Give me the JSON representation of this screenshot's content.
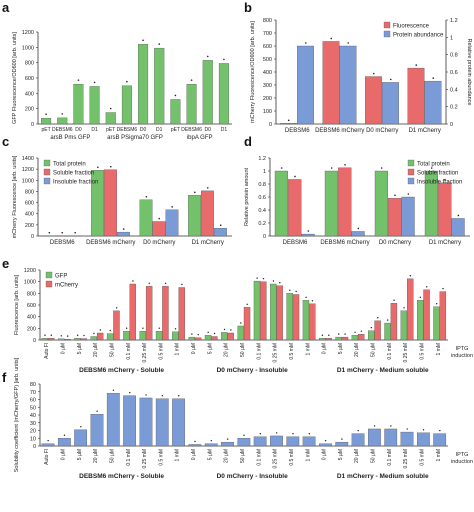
{
  "colors": {
    "green": "#74c16c",
    "red": "#e86a6a",
    "blue": "#7b9bd6",
    "axis": "#333333"
  },
  "chart_data": [
    {
      "panel": "a",
      "type": "bar",
      "ylabel": "GFP Fluorescence/OD600 [arb. units]",
      "ylim": [
        0,
        1200
      ],
      "yticks": [
        0,
        200,
        400,
        600,
        800,
        1000,
        1200
      ],
      "categories": [
        "pET",
        "DEBSM6",
        "D0",
        "D1",
        "pET",
        "DEBSM6",
        "D0",
        "D1",
        "pET",
        "DEBSM6",
        "D0",
        "D1"
      ],
      "values": [
        75,
        80,
        520,
        490,
        150,
        500,
        1040,
        990,
        320,
        520,
        830,
        790
      ],
      "group_labels": [
        "arsB Pms GFP",
        "arsB PSigma70 GFP",
        "ibpA GFP"
      ],
      "series": [
        {
          "name": "",
          "color": "green"
        }
      ]
    },
    {
      "panel": "b",
      "type": "bar",
      "ylabel": "mCherry Fluorescence/OD600 [arb. units]",
      "ylabel_right": "Relative protein abundance",
      "ylim": [
        0,
        800
      ],
      "yticks": [
        0,
        100,
        200,
        300,
        400,
        500,
        600,
        700,
        800
      ],
      "ylim_right": [
        0,
        1.2
      ],
      "yticks_right": [
        0,
        0.2,
        0.4,
        0.6,
        0.8,
        1,
        1.2
      ],
      "categories": [
        "DEBSM6",
        "DEBSM6 mCherry",
        "D0 mCherry",
        "D1 mCherry"
      ],
      "legend": "top-right",
      "series": [
        {
          "name": "Fluorescence",
          "color": "red",
          "values": [
            5,
            635,
            365,
            430
          ]
        },
        {
          "name": "Protein abundance",
          "color": "blue",
          "values": [
            600,
            600,
            320,
            330
          ]
        }
      ]
    },
    {
      "panel": "c",
      "type": "bar",
      "ylabel": "mCherry Fluorescence [arb. units]",
      "ylim": [
        0,
        1400
      ],
      "yticks": [
        0,
        200,
        400,
        600,
        800,
        1000,
        1200,
        1400
      ],
      "categories": [
        "DEBSM6",
        "DEBSM6 mCherry",
        "D0 mCherry",
        "D1 mCherry"
      ],
      "legend": "top-left",
      "series": [
        {
          "name": "Total protein",
          "color": "green",
          "values": [
            5,
            1180,
            650,
            730
          ]
        },
        {
          "name": "Soluble fraction",
          "color": "red",
          "values": [
            5,
            1190,
            260,
            810
          ]
        },
        {
          "name": "Insoluble fraction",
          "color": "blue",
          "values": [
            5,
            70,
            470,
            140
          ]
        }
      ]
    },
    {
      "panel": "d",
      "type": "bar",
      "ylabel": "Relative protein amount",
      "ylim": [
        0,
        1.2
      ],
      "yticks": [
        0,
        0.2,
        0.4,
        0.6,
        0.8,
        1,
        1.2
      ],
      "categories": [
        "DEBSM6",
        "DEBSM6 mCherry",
        "D0 mCherry",
        "D1 mCherry"
      ],
      "legend": "top-right",
      "series": [
        {
          "name": "Total protein",
          "color": "green",
          "values": [
            1,
            1,
            1,
            1
          ]
        },
        {
          "name": "Soluble fraction",
          "color": "red",
          "values": [
            0.87,
            1.05,
            0.58,
            0.82
          ]
        },
        {
          "name": "Insoluble fraction",
          "color": "blue",
          "values": [
            0.03,
            0.07,
            0.6,
            0.27
          ]
        }
      ]
    },
    {
      "panel": "e",
      "type": "bar",
      "ylabel": "Fluorescence [arb. units]",
      "ylim": [
        0,
        1200
      ],
      "yticks": [
        0,
        200,
        400,
        600,
        800,
        1000,
        1200
      ],
      "categories": [
        "Auto Fl",
        "0 µM",
        "5 µM",
        "20 µM",
        "50 µM",
        "0.1 mM",
        "0.25 mM",
        "0.5 mM",
        "1 mM",
        "0 µM",
        "5 µM",
        "20 µM",
        "50 µM",
        "0.1 mM",
        "0.25 mM",
        "0.5 mM",
        "1 mM",
        "0 µM",
        "5 µM",
        "20 µM",
        "50 µM",
        "0.1 mM",
        "0.25 mM",
        "0.5 mM",
        "1 mM"
      ],
      "group_labels": [
        "DEBSM6 mCherry - Soluble",
        "D0 mCherry - Insoluble",
        "D1 mCherry - Medium soluble"
      ],
      "axis_note": "IPTG induction",
      "legend": "top-left",
      "series": [
        {
          "name": "GFP",
          "color": "green",
          "values": [
            30,
            20,
            30,
            60,
            110,
            150,
            150,
            150,
            140,
            50,
            80,
            130,
            240,
            1010,
            960,
            800,
            680,
            30,
            50,
            80,
            160,
            290,
            500,
            680,
            570
          ]
        },
        {
          "name": "mCherry",
          "color": "red",
          "values": [
            30,
            15,
            25,
            120,
            500,
            960,
            920,
            920,
            900,
            40,
            60,
            120,
            560,
            1000,
            930,
            780,
            620,
            30,
            50,
            100,
            330,
            630,
            1050,
            860,
            830
          ]
        }
      ]
    },
    {
      "panel": "f",
      "type": "bar",
      "ylabel": "Solubility coefficient (mCherry/GFP) [arb. units]",
      "ylim": [
        0,
        80
      ],
      "yticks": [
        0,
        10,
        20,
        30,
        40,
        50,
        60,
        70,
        80
      ],
      "categories": [
        "Auto Fl",
        "0 µM",
        "5 µM",
        "20 µM",
        "50 µM",
        "0.1 mM",
        "0.25 mM",
        "0.5 mM",
        "1 mM",
        "0 µM",
        "5 µM",
        "20 µM",
        "50 µM",
        "0.1 mM",
        "0.25 mM",
        "0.5 mM",
        "1 mM",
        "0 µM",
        "5 µM",
        "20 µM",
        "50 µM",
        "0.1 mM",
        "0.25 mM",
        "0.5 mM",
        "1 mM"
      ],
      "group_labels": [
        "DEBSM6 mCherry - Soluble",
        "D0 mCherry - Insoluble",
        "D1 mCherry - Medium soluble"
      ],
      "axis_note": "IPTG induction",
      "series": [
        {
          "name": "",
          "color": "blue",
          "values": [
            3,
            10,
            21,
            41,
            68,
            65,
            62,
            61,
            61,
            2,
            3,
            5,
            10,
            12,
            13,
            12,
            12,
            3,
            5,
            16,
            22,
            22,
            18,
            17,
            16
          ]
        }
      ]
    }
  ]
}
